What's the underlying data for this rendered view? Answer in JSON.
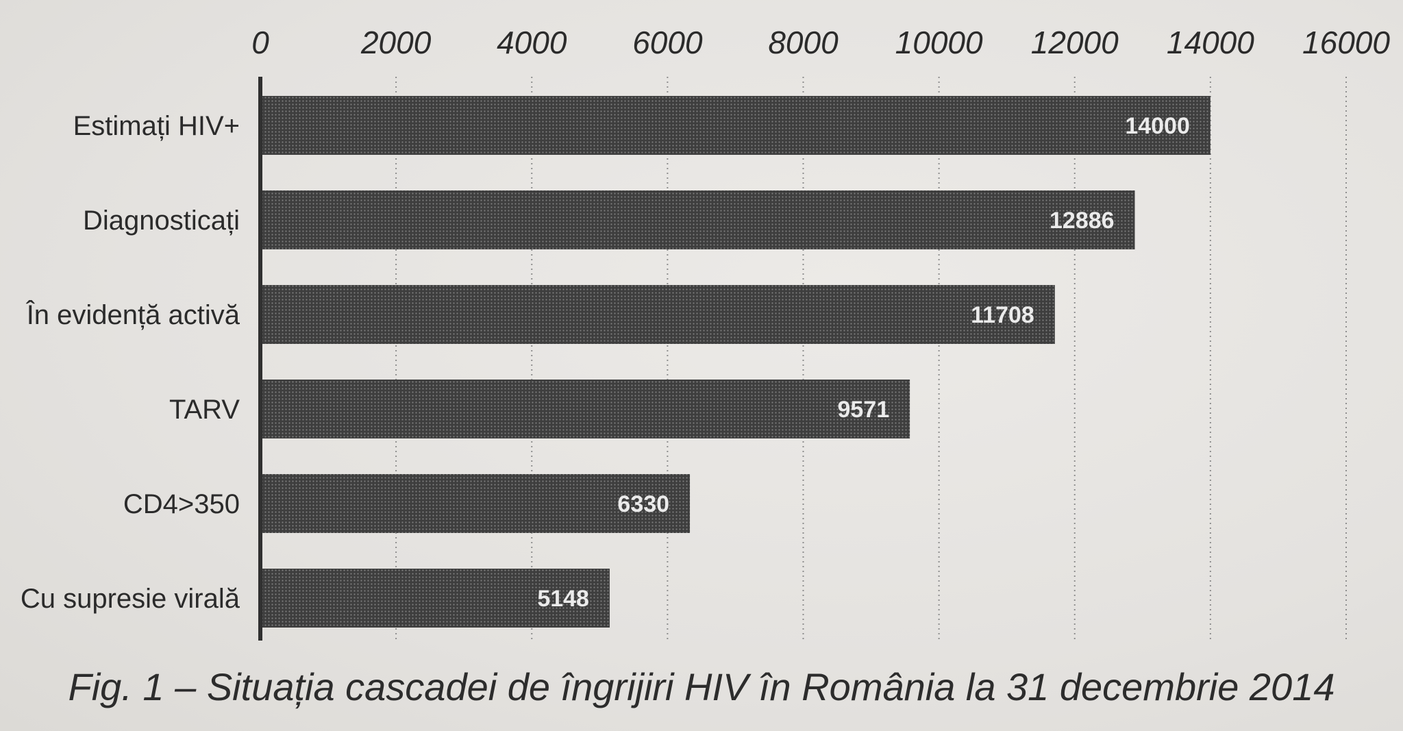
{
  "chart_data": {
    "type": "bar",
    "orientation": "horizontal",
    "categories": [
      "Estimați HIV+",
      "Diagnosticați",
      "În evidență activă",
      "TARV",
      "CD4>350",
      "Cu supresie virală"
    ],
    "values": [
      14000,
      12886,
      11708,
      9571,
      6330,
      5148
    ],
    "value_labels": [
      "14000",
      "12886",
      "11708",
      "9571",
      "6330",
      "5148"
    ],
    "x_ticks": [
      "0",
      "2000",
      "4000",
      "6000",
      "8000",
      "10000",
      "12000",
      "14000",
      "16000"
    ],
    "xlim": [
      0,
      16000
    ],
    "x_axis_position": "top",
    "grid": true,
    "legend": "none",
    "caption": "Fig. 1 – Situația cascadei de îngrijiri HIV în România la 31 decembrie 2014",
    "colors": {
      "bar": "#4a4a4a",
      "value_label": "#ebebeb",
      "text": "#2b2b2b",
      "background": "#e6e4e1"
    }
  }
}
